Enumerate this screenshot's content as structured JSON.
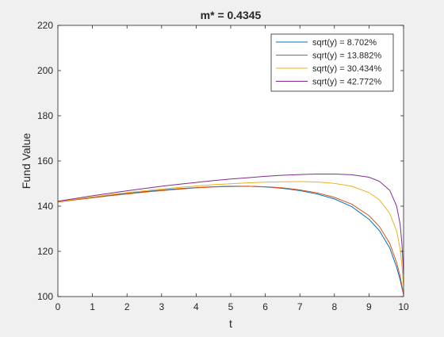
{
  "chart_data": {
    "type": "line",
    "title": "m* = 0.4345",
    "xlabel": "t",
    "ylabel": "Fund Value",
    "xlim": [
      0,
      10
    ],
    "ylim": [
      100,
      220
    ],
    "xticks": [
      0,
      1,
      2,
      3,
      4,
      5,
      6,
      7,
      8,
      9,
      10
    ],
    "yticks": [
      100,
      120,
      140,
      160,
      180,
      200,
      220
    ],
    "grid": false,
    "legend_position": "top-right",
    "series": [
      {
        "name": "sqrt(y) = 8.702%",
        "color": "#0072BD",
        "x": [
          0,
          0.5,
          1,
          1.5,
          2,
          2.5,
          3,
          3.5,
          4,
          4.5,
          5,
          5.5,
          6,
          6.5,
          7,
          7.5,
          8,
          8.5,
          9,
          9.3,
          9.6,
          9.8,
          9.9,
          9.95,
          10
        ],
        "y": [
          142,
          143,
          143.9,
          144.8,
          145.6,
          146.4,
          147.1,
          147.7,
          148.2,
          148.6,
          148.8,
          148.8,
          148.5,
          147.9,
          146.9,
          145.4,
          143.2,
          139.8,
          134.2,
          129.2,
          121.5,
          113,
          107.5,
          104,
          101
        ]
      },
      {
        "name": "sqrt(y) = 13.882%",
        "color": "#D95319",
        "x": [
          0,
          0.5,
          1,
          1.5,
          2,
          2.5,
          3,
          3.5,
          4,
          4.5,
          5,
          5.5,
          6,
          6.5,
          7,
          7.5,
          8,
          8.5,
          9,
          9.3,
          9.6,
          9.8,
          9.9,
          9.95,
          10
        ],
        "y": [
          141.8,
          142.8,
          143.7,
          144.6,
          145.4,
          146.2,
          146.9,
          147.5,
          148.1,
          148.5,
          148.7,
          148.8,
          148.6,
          148.1,
          147.2,
          145.9,
          143.9,
          140.9,
          135.8,
          131,
          123.5,
          115,
          109,
          105,
          101
        ]
      },
      {
        "name": "sqrt(y) = 30.434%",
        "color": "#EDB120",
        "x": [
          0,
          0.5,
          1,
          1.5,
          2,
          2.5,
          3,
          3.5,
          4,
          4.5,
          5,
          5.5,
          6,
          6.5,
          7,
          7.5,
          8,
          8.5,
          9,
          9.3,
          9.6,
          9.8,
          9.9,
          9.95,
          10
        ],
        "y": [
          142,
          143.1,
          144.1,
          145.1,
          146,
          146.8,
          147.6,
          148.3,
          148.9,
          149.5,
          149.9,
          150.3,
          150.6,
          150.8,
          150.9,
          150.7,
          150.1,
          148.8,
          146,
          142.8,
          136.8,
          129,
          121,
          114,
          105
        ]
      },
      {
        "name": "sqrt(y) = 42.772%",
        "color": "#7E2F8E",
        "x": [
          0,
          0.5,
          1,
          1.5,
          2,
          2.5,
          3,
          3.5,
          4,
          4.5,
          5,
          5.5,
          6,
          6.5,
          7,
          7.5,
          8,
          8.5,
          9,
          9.3,
          9.6,
          9.8,
          9.9,
          9.95,
          10
        ],
        "y": [
          142.2,
          143.4,
          144.6,
          145.7,
          146.8,
          147.8,
          148.8,
          149.7,
          150.5,
          151.3,
          152,
          152.6,
          153.2,
          153.7,
          154,
          154.2,
          154.2,
          153.9,
          152.8,
          151,
          147,
          140,
          132,
          124,
          110
        ]
      }
    ]
  }
}
